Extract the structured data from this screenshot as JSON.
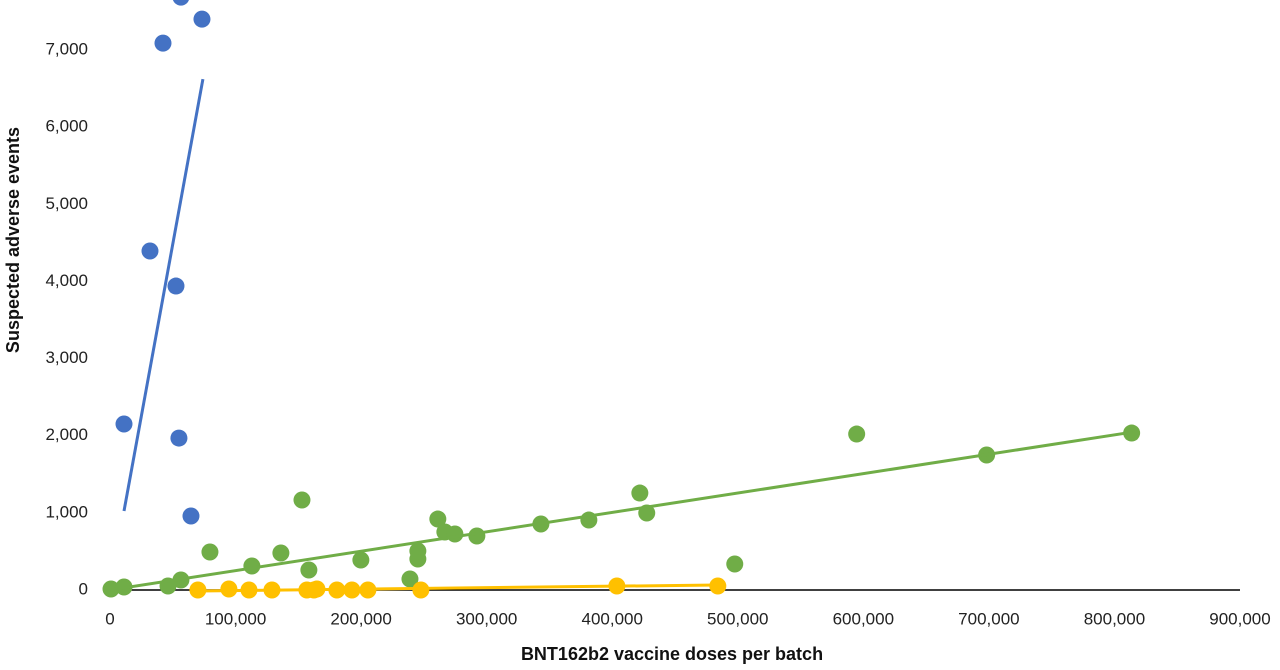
{
  "chart_data": {
    "type": "scatter",
    "xlabel": "BNT162b2 vaccine doses per batch",
    "ylabel": "Suspected adverse events",
    "xlim": [
      0,
      900000
    ],
    "ylim": [
      0,
      7650
    ],
    "xticks": [
      0,
      {
        "value": 100000,
        "label": "100,000"
      },
      {
        "value": 200000,
        "label": "200,000"
      },
      {
        "value": 300000,
        "label": "300,000"
      },
      {
        "value": 400000,
        "label": "400,000"
      },
      {
        "value": 500000,
        "label": "500,000"
      },
      {
        "value": 600000,
        "label": "600,000"
      },
      {
        "value": 700000,
        "label": "700,000"
      },
      {
        "value": 800000,
        "label": "800,000"
      },
      {
        "value": 900000,
        "label": "900,000"
      }
    ],
    "yticks": [
      0,
      {
        "value": 1000,
        "label": "1,000"
      },
      {
        "value": 2000,
        "label": "2,000"
      },
      {
        "value": 3000,
        "label": "3,000"
      },
      {
        "value": 4000,
        "label": "4,000"
      },
      {
        "value": 5000,
        "label": "5,000"
      },
      {
        "value": 6000,
        "label": "6,000"
      },
      {
        "value": 7000,
        "label": "7,000"
      }
    ],
    "series": [
      {
        "color": "#4472c4",
        "x": [
          11150,
          31850,
          42200,
          52550,
          54900,
          56500,
          64500,
          73250
        ],
        "values": [
          2152,
          4395,
          7091,
          3941,
          1970,
          7687,
          959,
          7402
        ],
        "trendline": {
          "x": [
            11150,
            74000
          ],
          "values": [
            1024,
            6624
          ]
        }
      },
      {
        "color": "#70ad47",
        "x": [
          800,
          11150,
          46200,
          56500,
          79600,
          113000,
          136100,
          152900,
          158400,
          199800,
          238900,
          245200,
          245200,
          261100,
          266700,
          274700,
          292200,
          343200,
          381400,
          422000,
          427500,
          497600,
          594700,
          698200,
          813700
        ],
        "values": [
          13,
          39,
          52,
          130,
          493,
          311,
          480,
          1167,
          259,
          389,
          143,
          402,
          506,
          920,
          752,
          726,
          700,
          856,
          907,
          1257,
          998,
          337,
          2022,
          1750,
          2035
        ],
        "trendline": {
          "x": [
            0,
            814500
          ],
          "values": [
            0,
            2048
          ]
        }
      },
      {
        "color": "#ffc000",
        "x": [
          70000,
          94700,
          110700,
          129000,
          156800,
          162400,
          164800,
          180700,
          192700,
          205400,
          247600,
          403700,
          484100
        ],
        "values": [
          0,
          13,
          0,
          0,
          0,
          0,
          13,
          0,
          0,
          0,
          0,
          52,
          52
        ],
        "trendline": {
          "x": [
            70000,
            484100
          ],
          "values": [
            -13,
            65
          ]
        }
      }
    ]
  }
}
